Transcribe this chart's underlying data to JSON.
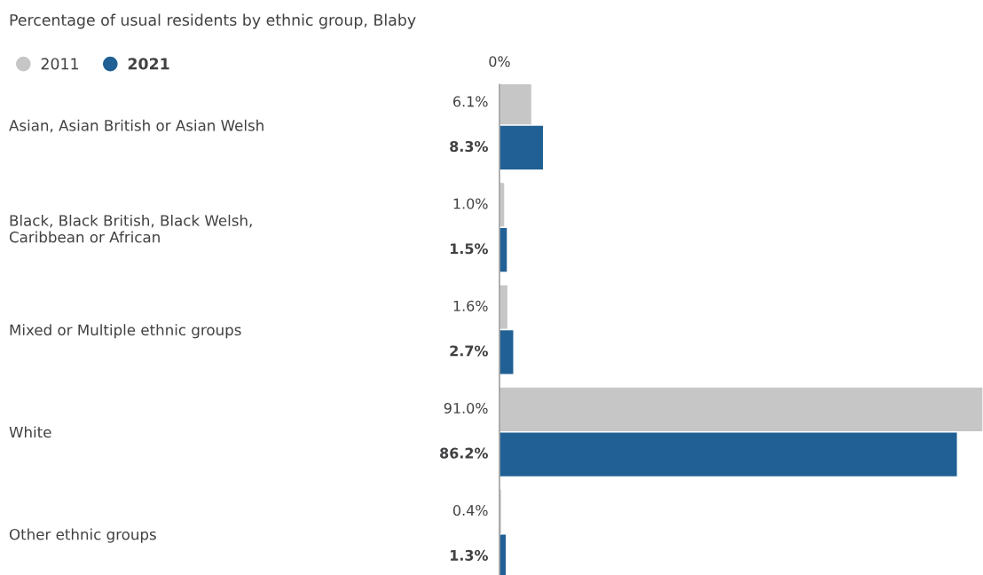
{
  "chart_data": {
    "type": "bar",
    "orientation": "horizontal",
    "title": "Percentage of usual residents by ethnic group, Blaby",
    "categories": [
      "Asian, Asian British or Asian Welsh",
      "Black, Black British, Black Welsh,\nCaribbean or African",
      "Mixed or Multiple ethnic groups",
      "White",
      "Other ethnic groups"
    ],
    "series": [
      {
        "name": "2011",
        "color": "#c6c6c6",
        "values": [
          6.1,
          1.0,
          1.6,
          91.0,
          0.4
        ],
        "value_labels": [
          "6.1%",
          "1.0%",
          "1.6%",
          "91.0%",
          "0.4%"
        ]
      },
      {
        "name": "2021",
        "color": "#206095",
        "values": [
          8.3,
          1.5,
          2.7,
          86.2,
          1.3
        ],
        "value_labels": [
          "8.3%",
          "1.5%",
          "2.7%",
          "86.2%",
          "1.3%"
        ]
      }
    ],
    "annotations": [
      "0%"
    ],
    "grid": false,
    "legend": "top left"
  }
}
